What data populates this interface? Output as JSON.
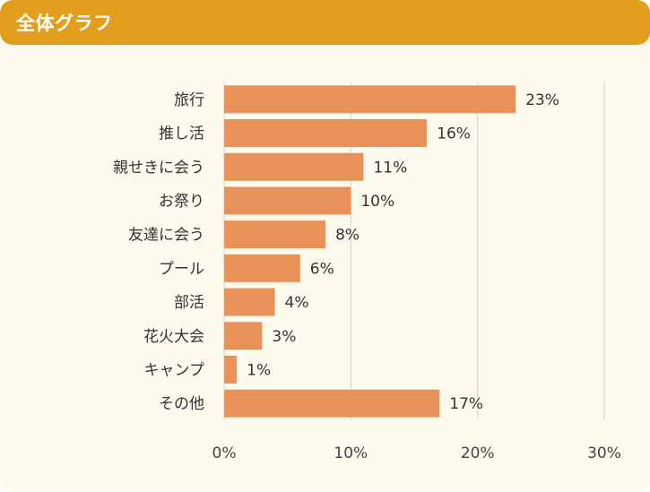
{
  "header": {
    "title": "全体グラフ"
  },
  "colors": {
    "header_bg": "#e29e1c",
    "panel_bg": "#fdfaee",
    "bar": "#e8925a",
    "grid": "#d9d9d9"
  },
  "chart_data": {
    "type": "bar",
    "orientation": "horizontal",
    "categories": [
      "旅行",
      "推し活",
      "親せきに会う",
      "お祭り",
      "友達に会う",
      "プール",
      "部活",
      "花火大会",
      "キャンプ",
      "その他"
    ],
    "values": [
      23,
      16,
      11,
      10,
      8,
      6,
      4,
      3,
      1,
      17
    ],
    "value_labels": [
      "23%",
      "16%",
      "11%",
      "10%",
      "8%",
      "6%",
      "4%",
      "3%",
      "1%",
      "17%"
    ],
    "xlim": [
      0,
      30
    ],
    "x_ticks": [
      0,
      10,
      20,
      30
    ],
    "x_tick_labels": [
      "0%",
      "10%",
      "20%",
      "30%"
    ],
    "grid": true,
    "legend": "none"
  }
}
